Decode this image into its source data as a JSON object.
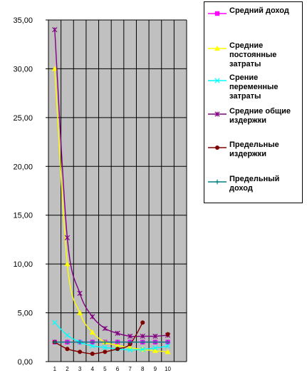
{
  "chart_data": {
    "type": "line",
    "categories": [
      "1",
      "2",
      "3",
      "4",
      "5",
      "6",
      "7",
      "8",
      "9",
      "10"
    ],
    "ylim": [
      0,
      35
    ],
    "yticks": [
      "0,00",
      "5,00",
      "10,00",
      "15,00",
      "20,00",
      "25,00",
      "30,00",
      "35,00"
    ],
    "ytick_values": [
      0,
      5,
      10,
      15,
      20,
      25,
      30,
      35
    ],
    "plot_background": "#c0c0c0",
    "grid": true,
    "legend_position": "right",
    "series": [
      {
        "name": "Средний доход",
        "color": "#ff00ff",
        "marker": "square",
        "values": [
          2,
          2,
          2,
          2,
          2,
          2,
          2,
          2,
          2,
          2
        ]
      },
      {
        "name": "Средние постоянные затраты",
        "color": "#ffff00",
        "marker": "triangle",
        "values": [
          30,
          10,
          5,
          3,
          2,
          1.67,
          1.43,
          1.25,
          1.11,
          1.0
        ]
      },
      {
        "name": "Срение переменные затраты",
        "color": "#00ffff",
        "marker": "x",
        "values": [
          4,
          2.7,
          2.0,
          1.6,
          1.45,
          1.3,
          1.2,
          1.25,
          1.4,
          1.6
        ]
      },
      {
        "name": "Средние общие издержки",
        "color": "#800080",
        "marker": "star",
        "values": [
          34,
          12.7,
          7.0,
          4.6,
          3.4,
          2.9,
          2.6,
          2.6,
          2.6,
          2.7
        ]
      },
      {
        "name": "Предельные издержки",
        "color": "#800000",
        "marker": "circle",
        "values": [
          2,
          1.3,
          1.0,
          0.8,
          1.0,
          1.3,
          1.8,
          4.0,
          null,
          2.8
        ]
      },
      {
        "name": "Предельный доход",
        "color": "#008080",
        "marker": "plus",
        "values": [
          2,
          2,
          2,
          2,
          2,
          2,
          2,
          2,
          2,
          2
        ]
      }
    ]
  }
}
